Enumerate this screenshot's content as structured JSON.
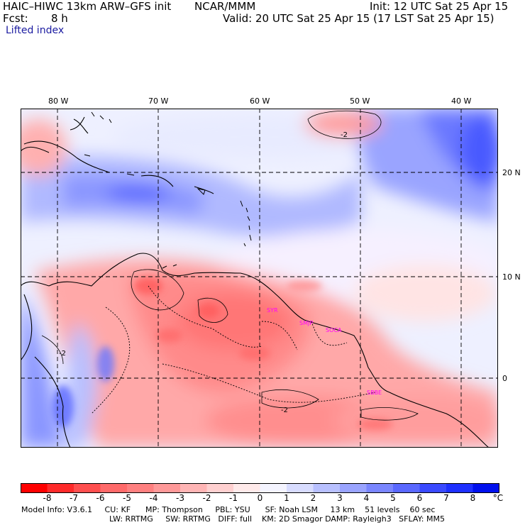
{
  "header": {
    "model": "HAIC–HIWC 13km ARW–GFS init",
    "org": "NCAR/MMM",
    "init": "Init: 12 UTC Sat 25 Apr 15",
    "fcst_label": "Fcst:",
    "fcst_value": "8 h",
    "valid": "Valid: 20 UTC Sat 25 Apr 15 (17 LST Sat 25 Apr 15)",
    "field": "Lifted index"
  },
  "lon_labels": [
    "80 W",
    "70 W",
    "60 W",
    "50 W",
    "40 W"
  ],
  "lat_labels": [
    "20 N",
    "10 N",
    "0"
  ],
  "stations": [
    "SYR",
    "SMJP",
    "SOCA",
    "SBBE"
  ],
  "contour_labels": [
    "-2",
    "-2",
    "-2"
  ],
  "colorbar": {
    "ticks": [
      "-8",
      "-7",
      "-6",
      "-5",
      "-4",
      "-3",
      "-2",
      "-1",
      "0",
      "1",
      "2",
      "3",
      "4",
      "5",
      "6",
      "7",
      "8"
    ],
    "unit": "°C",
    "colors": [
      "#ff0000",
      "#ff2a2a",
      "#ff4f4f",
      "#ff6a6a",
      "#ff8080",
      "#ff9999",
      "#ffb5b5",
      "#ffd0d0",
      "#ffeaea",
      "#f4f4ff",
      "#d8dcff",
      "#b8c0ff",
      "#9aa4ff",
      "#7a86ff",
      "#5a68ff",
      "#3a4aff",
      "#1e30ff",
      "#0010ee"
    ]
  },
  "footer": {
    "line1": "Model Info: V3.6.1     CU: KF      MP: Thompson     PBL: YSU      SF: Noah LSM     13 km    51 levels    60 sec",
    "line2": "LW: RRTMG     SW: RRTMG   DIFF: full    KM: 2D Smagor DAMP: Rayleigh3   SFLAY: MM5"
  }
}
